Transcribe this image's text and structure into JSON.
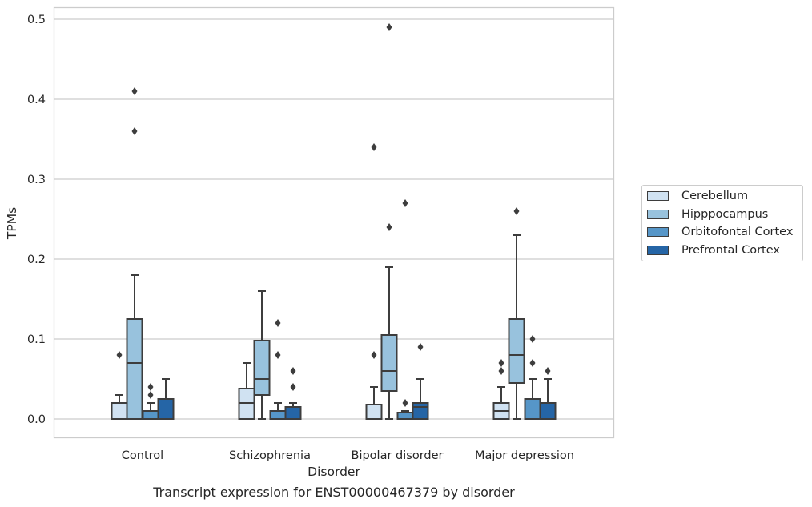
{
  "chart_data": {
    "type": "box",
    "xlabel": "Disorder",
    "ylabel": "TPMs",
    "ylim": [
      -0.023,
      0.515
    ],
    "yticks": [
      0.0,
      0.1,
      0.2,
      0.3,
      0.4,
      0.5
    ],
    "ytick_labels": [
      "0.0",
      "0.1",
      "0.2",
      "0.3",
      "0.4",
      "0.5"
    ],
    "grid": "horizontal",
    "legend_position": "right",
    "categories": [
      "Control",
      "Schizophrenia",
      "Bipolar disorder",
      "Major depression"
    ],
    "series": [
      {
        "name": "Cerebellum",
        "color": "#d0e2f2",
        "boxes": [
          {
            "whislo": 0.0,
            "q1": 0.0,
            "med": 0.0,
            "q3": 0.02,
            "whishi": 0.03,
            "fliers": [
              0.08
            ]
          },
          {
            "whislo": 0.0,
            "q1": 0.0,
            "med": 0.02,
            "q3": 0.038,
            "whishi": 0.07,
            "fliers": []
          },
          {
            "whislo": 0.0,
            "q1": 0.0,
            "med": 0.0,
            "q3": 0.018,
            "whishi": 0.04,
            "fliers": [
              0.08,
              0.34
            ]
          },
          {
            "whislo": 0.0,
            "q1": 0.0,
            "med": 0.01,
            "q3": 0.02,
            "whishi": 0.04,
            "fliers": [
              0.06,
              0.07
            ]
          }
        ]
      },
      {
        "name": "Hipppocampus",
        "color": "#98c2dd",
        "boxes": [
          {
            "whislo": 0.0,
            "q1": 0.0,
            "med": 0.07,
            "q3": 0.125,
            "whishi": 0.18,
            "fliers": [
              0.36,
              0.41
            ]
          },
          {
            "whislo": 0.0,
            "q1": 0.03,
            "med": 0.05,
            "q3": 0.098,
            "whishi": 0.16,
            "fliers": []
          },
          {
            "whislo": 0.0,
            "q1": 0.035,
            "med": 0.06,
            "q3": 0.105,
            "whishi": 0.19,
            "fliers": [
              0.24,
              0.49
            ]
          },
          {
            "whislo": 0.0,
            "q1": 0.045,
            "med": 0.08,
            "q3": 0.125,
            "whishi": 0.23,
            "fliers": [
              0.26
            ]
          }
        ]
      },
      {
        "name": "Orbitofontal Cortex",
        "color": "#5696c8",
        "boxes": [
          {
            "whislo": 0.0,
            "q1": 0.0,
            "med": 0.01,
            "q3": 0.01,
            "whishi": 0.02,
            "fliers": [
              0.03,
              0.04
            ]
          },
          {
            "whislo": 0.0,
            "q1": 0.0,
            "med": 0.01,
            "q3": 0.01,
            "whishi": 0.02,
            "fliers": [
              0.08,
              0.12
            ]
          },
          {
            "whislo": 0.0,
            "q1": 0.0,
            "med": 0.008,
            "q3": 0.008,
            "whishi": 0.01,
            "fliers": [
              0.02,
              0.27
            ]
          },
          {
            "whislo": 0.0,
            "q1": 0.0,
            "med": 0.025,
            "q3": 0.025,
            "whishi": 0.05,
            "fliers": [
              0.07,
              0.1
            ]
          }
        ]
      },
      {
        "name": "Prefrontal Cortex",
        "color": "#2565a6",
        "boxes": [
          {
            "whislo": 0.0,
            "q1": 0.0,
            "med": 0.025,
            "q3": 0.025,
            "whishi": 0.05,
            "fliers": []
          },
          {
            "whislo": 0.0,
            "q1": 0.0,
            "med": 0.015,
            "q3": 0.015,
            "whishi": 0.02,
            "fliers": [
              0.04,
              0.06
            ]
          },
          {
            "whislo": 0.0,
            "q1": 0.0,
            "med": 0.015,
            "q3": 0.02,
            "whishi": 0.05,
            "fliers": [
              0.09
            ]
          },
          {
            "whislo": 0.0,
            "q1": 0.0,
            "med": 0.02,
            "q3": 0.02,
            "whishi": 0.05,
            "fliers": [
              0.06
            ]
          }
        ]
      }
    ]
  },
  "caption": "Transcript expression for ENST00000467379 by disorder"
}
